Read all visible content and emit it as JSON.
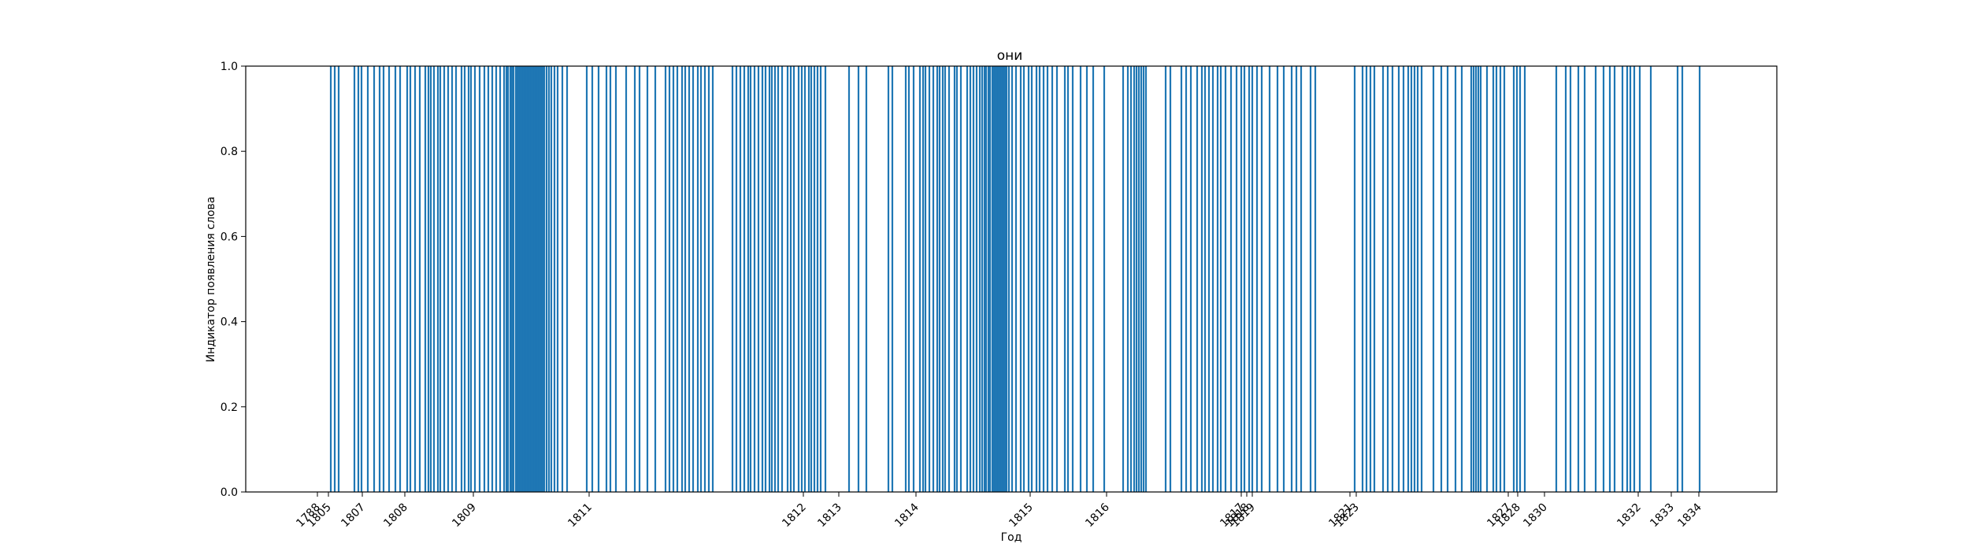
{
  "chart_data": {
    "type": "bar",
    "title": "они",
    "xlabel": "Год",
    "ylabel": "Индикатор появления слова",
    "ylim": [
      0,
      1.0
    ],
    "yticks": [
      "0.0",
      "0.2",
      "0.4",
      "0.6",
      "0.8",
      "1.0"
    ],
    "bar_color": "#1f77b4",
    "grid": false,
    "xticks": [
      {
        "label": "1788",
        "px": 403
      },
      {
        "label": "1805",
        "px": 417
      },
      {
        "label": "1807",
        "px": 460
      },
      {
        "label": "1808",
        "px": 514
      },
      {
        "label": "1809",
        "px": 601
      },
      {
        "label": "1811",
        "px": 748
      },
      {
        "label": "1812",
        "px": 1020
      },
      {
        "label": "1813",
        "px": 1065
      },
      {
        "label": "1814",
        "px": 1163
      },
      {
        "label": "1815",
        "px": 1308
      },
      {
        "label": "1816",
        "px": 1405
      },
      {
        "label": "1817",
        "px": 1576
      },
      {
        "label": "1818",
        "px": 1583
      },
      {
        "label": "1819",
        "px": 1590
      },
      {
        "label": "1821",
        "px": 1714
      },
      {
        "label": "1823",
        "px": 1722
      },
      {
        "label": "1827",
        "px": 1915
      },
      {
        "label": "1828",
        "px": 1927
      },
      {
        "label": "1830",
        "px": 1961
      },
      {
        "label": "1832",
        "px": 2080
      },
      {
        "label": "1833",
        "px": 2122
      },
      {
        "label": "1834",
        "px": 2157
      }
    ],
    "values": [
      1,
      1,
      1,
      1,
      1,
      1,
      1,
      1,
      1,
      1,
      1,
      1,
      1,
      1,
      1,
      1,
      1,
      1,
      1,
      1,
      1,
      1,
      1,
      1,
      1,
      1,
      1,
      1,
      1,
      1,
      1,
      1,
      1,
      1,
      1,
      1,
      1,
      1,
      1,
      1,
      1,
      1,
      1,
      1,
      1,
      1,
      1,
      1,
      1,
      1,
      1,
      1,
      1,
      1,
      1,
      1,
      1,
      1,
      1,
      1,
      1,
      1,
      1,
      1,
      1,
      1,
      1,
      1,
      1,
      1,
      1,
      1,
      1,
      1,
      1,
      1,
      1,
      1,
      1,
      1,
      1,
      1,
      1,
      1,
      1,
      1,
      1,
      1,
      1,
      1,
      1,
      1,
      1,
      1,
      1,
      1,
      1,
      1,
      1,
      1,
      1,
      1,
      1,
      1,
      1,
      1,
      1,
      1,
      1,
      1,
      1,
      1,
      1,
      1,
      1,
      1,
      1,
      1,
      1,
      1,
      1,
      1,
      1,
      1,
      1,
      1,
      1,
      1,
      1,
      1,
      1,
      1,
      1,
      1,
      1,
      1,
      1,
      1,
      1,
      1,
      1,
      1,
      1,
      1,
      1,
      1,
      1,
      1,
      1,
      1,
      1,
      1,
      1,
      1,
      1,
      1,
      1,
      1,
      1,
      1,
      1,
      1,
      1,
      1,
      1,
      1,
      1,
      1,
      1,
      1,
      1,
      1,
      1,
      1,
      1,
      1,
      1,
      1,
      1,
      1,
      1,
      1,
      1,
      1,
      1,
      1,
      1,
      1,
      1,
      1,
      1,
      1,
      1,
      1,
      1,
      1,
      1,
      1,
      1,
      1,
      1,
      1,
      1,
      1,
      1,
      1,
      1,
      1,
      1,
      1,
      1,
      1,
      1,
      1,
      1,
      1,
      1,
      1,
      1,
      1,
      1,
      1,
      1,
      1,
      1,
      1,
      1,
      1,
      1,
      1,
      1,
      1,
      1,
      1,
      1,
      1,
      1,
      1,
      1,
      1,
      1,
      1,
      1,
      1,
      1,
      1,
      1,
      1,
      1,
      1,
      1,
      1,
      1,
      1,
      1,
      1,
      1,
      1,
      1,
      1,
      1,
      1,
      1,
      1,
      1,
      1,
      1,
      1,
      1,
      1,
      1,
      1,
      1,
      1,
      1,
      1,
      1,
      1,
      1,
      1,
      1,
      1,
      1,
      1,
      1,
      1,
      1,
      1,
      1,
      1,
      1,
      1,
      1,
      1,
      1,
      1,
      1,
      1,
      1,
      1,
      1,
      1,
      1,
      1,
      1,
      1,
      1,
      1,
      1,
      1,
      1,
      1,
      1,
      1,
      1,
      1,
      1,
      1,
      1,
      1,
      1,
      1,
      1,
      1,
      1,
      1,
      1,
      1,
      1,
      1,
      1,
      1,
      1,
      1,
      1,
      1,
      1,
      1,
      1,
      1,
      1,
      1,
      1,
      1,
      1,
      1,
      1,
      1,
      1,
      1,
      1,
      1,
      1,
      1,
      1,
      1,
      1,
      1,
      1,
      1,
      1,
      1,
      1,
      1,
      1,
      1,
      1,
      1,
      1,
      1,
      1,
      1,
      1,
      1,
      1,
      1,
      1,
      1,
      1,
      1,
      1,
      1,
      1,
      1,
      1,
      1,
      1,
      1,
      1,
      1,
      1,
      1,
      1,
      1,
      1,
      1,
      1,
      1,
      1,
      1,
      1,
      1,
      1,
      1,
      1,
      1,
      1,
      1,
      1,
      1,
      1,
      1,
      1,
      1,
      1,
      1,
      1,
      1,
      1,
      1,
      1,
      1,
      1,
      1,
      1,
      1,
      1,
      1,
      1,
      1,
      1,
      1,
      1,
      1,
      1,
      1,
      1,
      1,
      1,
      1,
      1,
      1,
      1,
      1,
      1,
      1,
      1,
      1,
      1,
      1,
      1,
      1,
      1,
      1,
      1,
      1,
      1,
      1,
      1,
      1
    ]
  }
}
